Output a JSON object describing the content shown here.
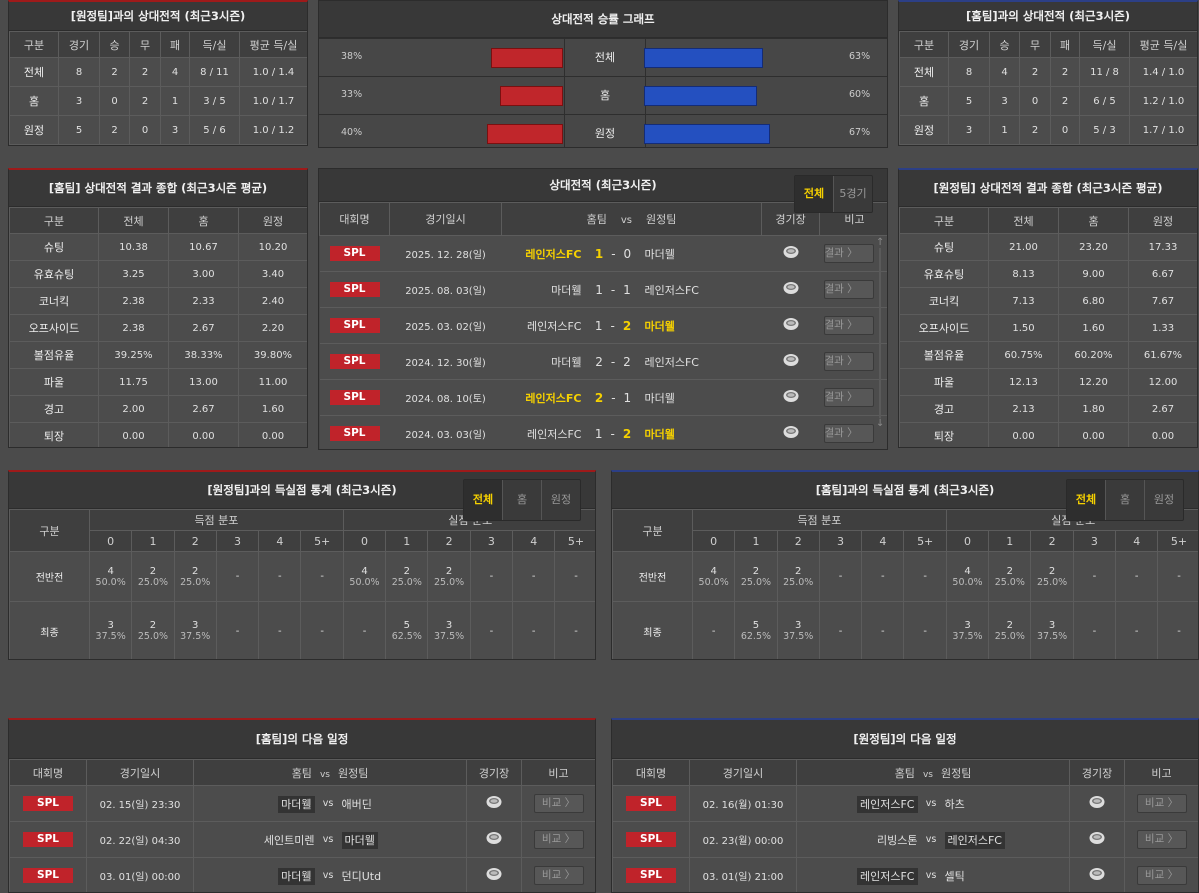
{
  "h2h_away": {
    "title": "[원정팀]과의 상대전적 (최근3시즌)",
    "headers": [
      "구분",
      "경기",
      "승",
      "무",
      "패",
      "득/실",
      "평균 득/실"
    ],
    "rows": [
      [
        "전체",
        "8",
        "2",
        "2",
        "4",
        "8 / 11",
        "1.0 / 1.4"
      ],
      [
        "홈",
        "3",
        "0",
        "2",
        "1",
        "3 / 5",
        "1.0 / 1.7"
      ],
      [
        "원정",
        "5",
        "2",
        "0",
        "3",
        "5 / 6",
        "1.0 / 1.2"
      ]
    ]
  },
  "winrate": {
    "title": "상대전적 승률 그래프",
    "colors": {
      "home": "#c0262b",
      "away": "#2450c0"
    },
    "rows": [
      {
        "label": "전체",
        "left": "38%",
        "left_value": 38,
        "right": "63%",
        "right_value": 63
      },
      {
        "label": "홈",
        "left": "33%",
        "left_value": 33,
        "right": "60%",
        "right_value": 60
      },
      {
        "label": "원정",
        "left": "40%",
        "left_value": 40,
        "right": "67%",
        "right_value": 67
      }
    ]
  },
  "h2h_home": {
    "title": "[홈팀]과의 상대전적 (최근3시즌)",
    "headers": [
      "구분",
      "경기",
      "승",
      "무",
      "패",
      "득/실",
      "평균 득/실"
    ],
    "rows": [
      [
        "전체",
        "8",
        "4",
        "2",
        "2",
        "11 / 8",
        "1.4 / 1.0"
      ],
      [
        "홈",
        "5",
        "3",
        "0",
        "2",
        "6 / 5",
        "1.2 / 1.0"
      ],
      [
        "원정",
        "3",
        "1",
        "2",
        "0",
        "5 / 3",
        "1.7 / 1.0"
      ]
    ]
  },
  "stats_home": {
    "title": "[홈팀] 상대전적 결과 종합 (최근3시즌 평균)",
    "headers": [
      "구분",
      "전체",
      "홈",
      "원정"
    ],
    "rows": [
      [
        "슈팅",
        "10.38",
        "10.67",
        "10.20"
      ],
      [
        "유효슈팅",
        "3.25",
        "3.00",
        "3.40"
      ],
      [
        "코너킥",
        "2.38",
        "2.33",
        "2.40"
      ],
      [
        "오프사이드",
        "2.38",
        "2.67",
        "2.20"
      ],
      [
        "볼점유율",
        "39.25%",
        "38.33%",
        "39.80%"
      ],
      [
        "파울",
        "11.75",
        "13.00",
        "11.00"
      ],
      [
        "경고",
        "2.00",
        "2.67",
        "1.60"
      ],
      [
        "퇴장",
        "0.00",
        "0.00",
        "0.00"
      ]
    ]
  },
  "stats_away": {
    "title": "[원정팀] 상대전적 결과 종합 (최근3시즌 평균)",
    "headers": [
      "구분",
      "전체",
      "홈",
      "원정"
    ],
    "rows": [
      [
        "슈팅",
        "21.00",
        "23.20",
        "17.33"
      ],
      [
        "유효슈팅",
        "8.13",
        "9.00",
        "6.67"
      ],
      [
        "코너킥",
        "7.13",
        "6.80",
        "7.67"
      ],
      [
        "오프사이드",
        "1.50",
        "1.60",
        "1.33"
      ],
      [
        "볼점유율",
        "60.75%",
        "60.20%",
        "61.67%"
      ],
      [
        "파울",
        "12.13",
        "12.20",
        "12.00"
      ],
      [
        "경고",
        "2.13",
        "1.80",
        "2.67"
      ],
      [
        "퇴장",
        "0.00",
        "0.00",
        "0.00"
      ]
    ]
  },
  "matches": {
    "title": "상대전적 (최근3시즌)",
    "tabs": [
      "전체",
      "5경기"
    ],
    "active_tab": 0,
    "headers": {
      "league": "대회명",
      "date": "경기일시",
      "home": "홈팀",
      "vs": "vs",
      "away": "원정팀",
      "stadium": "경기장",
      "note": "비고"
    },
    "rows": [
      {
        "league": "SPL",
        "date": "2025. 12. 28(일)",
        "home": "레인저스FC",
        "hs": "1",
        "as": "0",
        "away": "마더웰",
        "winner": "home",
        "button": "결과 〉"
      },
      {
        "league": "SPL",
        "date": "2025. 08. 03(일)",
        "home": "마더웰",
        "hs": "1",
        "as": "1",
        "away": "레인저스FC",
        "winner": "draw",
        "button": "결과 〉"
      },
      {
        "league": "SPL",
        "date": "2025. 03. 02(일)",
        "home": "레인저스FC",
        "hs": "1",
        "as": "2",
        "away": "마더웰",
        "winner": "away",
        "button": "결과 〉"
      },
      {
        "league": "SPL",
        "date": "2024. 12. 30(월)",
        "home": "마더웰",
        "hs": "2",
        "as": "2",
        "away": "레인저스FC",
        "winner": "draw",
        "button": "결과 〉"
      },
      {
        "league": "SPL",
        "date": "2024. 08. 10(토)",
        "home": "레인저스FC",
        "hs": "2",
        "as": "1",
        "away": "마더웰",
        "winner": "home",
        "button": "결과 〉"
      },
      {
        "league": "SPL",
        "date": "2024. 03. 03(일)",
        "home": "레인저스FC",
        "hs": "1",
        "as": "2",
        "away": "마더웰",
        "winner": "away",
        "button": "결과 〉"
      }
    ]
  },
  "goals_left": {
    "title": "[원정팀]과의 득실점 통계 (최근3시즌)",
    "tabs": [
      "전체",
      "홈",
      "원정"
    ],
    "active_tab": 0,
    "col_label": "구분",
    "group1": "득점 분포",
    "group2": "실점 분포",
    "buckets": [
      "0",
      "1",
      "2",
      "3",
      "4",
      "5+"
    ],
    "rows": [
      {
        "label": "전반전",
        "cells": [
          [
            "4",
            "50.0%"
          ],
          [
            "2",
            "25.0%"
          ],
          [
            "2",
            "25.0%"
          ],
          [
            "-",
            ""
          ],
          [
            "-",
            ""
          ],
          [
            "-",
            ""
          ],
          [
            "4",
            "50.0%"
          ],
          [
            "2",
            "25.0%"
          ],
          [
            "2",
            "25.0%"
          ],
          [
            "-",
            ""
          ],
          [
            "-",
            ""
          ],
          [
            "-",
            ""
          ]
        ]
      },
      {
        "label": "최종",
        "cells": [
          [
            "3",
            "37.5%"
          ],
          [
            "2",
            "25.0%"
          ],
          [
            "3",
            "37.5%"
          ],
          [
            "-",
            ""
          ],
          [
            "-",
            ""
          ],
          [
            "-",
            ""
          ],
          [
            "-",
            ""
          ],
          [
            "5",
            "62.5%"
          ],
          [
            "3",
            "37.5%"
          ],
          [
            "-",
            ""
          ],
          [
            "-",
            ""
          ],
          [
            "-",
            ""
          ]
        ]
      }
    ]
  },
  "goals_right": {
    "title": "[홈팀]과의 득실점 통계 (최근3시즌)",
    "tabs": [
      "전체",
      "홈",
      "원정"
    ],
    "active_tab": 0,
    "col_label": "구분",
    "group1": "득점 분포",
    "group2": "실점 분포",
    "buckets": [
      "0",
      "1",
      "2",
      "3",
      "4",
      "5+"
    ],
    "rows": [
      {
        "label": "전반전",
        "cells": [
          [
            "4",
            "50.0%"
          ],
          [
            "2",
            "25.0%"
          ],
          [
            "2",
            "25.0%"
          ],
          [
            "-",
            ""
          ],
          [
            "-",
            ""
          ],
          [
            "-",
            ""
          ],
          [
            "4",
            "50.0%"
          ],
          [
            "2",
            "25.0%"
          ],
          [
            "2",
            "25.0%"
          ],
          [
            "-",
            ""
          ],
          [
            "-",
            ""
          ],
          [
            "-",
            ""
          ]
        ]
      },
      {
        "label": "최종",
        "cells": [
          [
            "-",
            ""
          ],
          [
            "5",
            "62.5%"
          ],
          [
            "3",
            "37.5%"
          ],
          [
            "-",
            ""
          ],
          [
            "-",
            ""
          ],
          [
            "-",
            ""
          ],
          [
            "3",
            "37.5%"
          ],
          [
            "2",
            "25.0%"
          ],
          [
            "3",
            "37.5%"
          ],
          [
            "-",
            ""
          ],
          [
            "-",
            ""
          ],
          [
            "-",
            ""
          ]
        ]
      }
    ]
  },
  "sched_home": {
    "title": "[홈팀]의 다음 일정",
    "headers": {
      "league": "대회명",
      "date": "경기일시",
      "home": "홈팀",
      "vs": "vs",
      "away": "원정팀",
      "stadium": "경기장",
      "note": "비고"
    },
    "rows": [
      {
        "league": "SPL",
        "date": "02. 15(일) 23:30",
        "home": "마더웰",
        "away": "애버딘",
        "highlight": "home",
        "button": "비교 〉"
      },
      {
        "league": "SPL",
        "date": "02. 22(일) 04:30",
        "home": "세인트미렌",
        "away": "마더웰",
        "highlight": "away",
        "button": "비교 〉"
      },
      {
        "league": "SPL",
        "date": "03. 01(일) 00:00",
        "home": "마더웰",
        "away": "던디Utd",
        "highlight": "home",
        "button": "비교 〉"
      }
    ]
  },
  "sched_away": {
    "title": "[원정팀]의 다음 일정",
    "headers": {
      "league": "대회명",
      "date": "경기일시",
      "home": "홈팀",
      "vs": "vs",
      "away": "원정팀",
      "stadium": "경기장",
      "note": "비고"
    },
    "rows": [
      {
        "league": "SPL",
        "date": "02. 16(월) 01:30",
        "home": "레인저스FC",
        "away": "하츠",
        "highlight": "home",
        "button": "비교 〉"
      },
      {
        "league": "SPL",
        "date": "02. 23(월) 00:00",
        "home": "리빙스톤",
        "away": "레인저스FC",
        "highlight": "away",
        "button": "비교 〉"
      },
      {
        "league": "SPL",
        "date": "03. 01(일) 21:00",
        "home": "레인저스FC",
        "away": "셀틱",
        "highlight": "home",
        "button": "비교 〉"
      }
    ]
  }
}
